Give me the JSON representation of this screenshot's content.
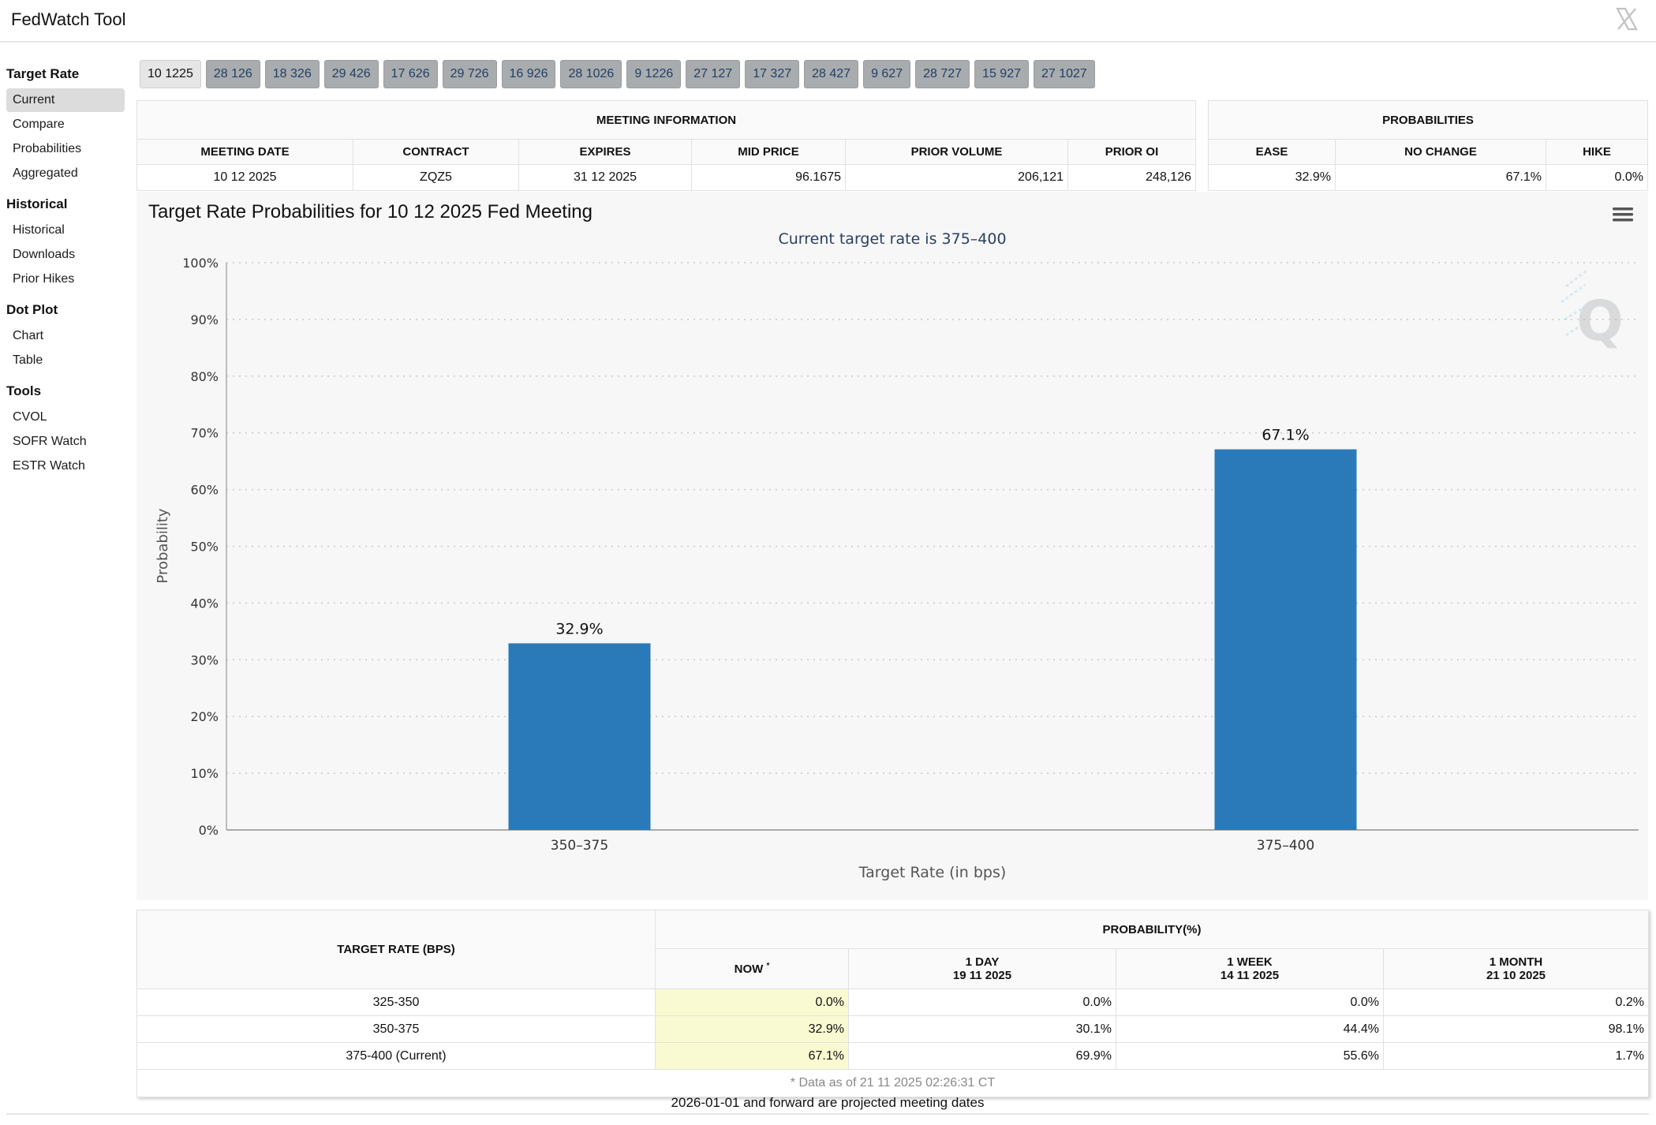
{
  "app": {
    "title": "FedWatch Tool"
  },
  "sidebar": {
    "sections": [
      {
        "heading": "Target Rate",
        "items": [
          "Current",
          "Compare",
          "Probabilities",
          "Aggregated"
        ]
      },
      {
        "heading": "Historical",
        "items": [
          "Historical",
          "Downloads",
          "Prior Hikes"
        ]
      },
      {
        "heading": "Dot Plot",
        "items": [
          "Chart",
          "Table"
        ]
      },
      {
        "heading": "Tools",
        "items": [
          "CVOL",
          "SOFR Watch",
          "ESTR Watch"
        ]
      }
    ],
    "active_item": "Current"
  },
  "tabs": [
    "10 1225",
    "28 126",
    "18 326",
    "29 426",
    "17 626",
    "29 726",
    "16 926",
    "28 1026",
    "9 1226",
    "27 127",
    "17 327",
    "28 427",
    "9 627",
    "28 727",
    "15 927",
    "27 1027"
  ],
  "meeting_info": {
    "caption": "MEETING INFORMATION",
    "headers": [
      "MEETING DATE",
      "CONTRACT",
      "EXPIRES",
      "MID PRICE",
      "PRIOR VOLUME",
      "PRIOR OI"
    ],
    "row": [
      "10 12 2025",
      "ZQZ5",
      "31 12 2025",
      "96.1675",
      "206,121",
      "248,126"
    ]
  },
  "probabilities": {
    "caption": "PROBABILITIES",
    "headers": [
      "EASE",
      "NO CHANGE",
      "HIKE"
    ],
    "row": [
      "32.9%",
      "67.1%",
      "0.0%"
    ]
  },
  "chart_data": {
    "type": "bar",
    "title": "Target Rate Probabilities for 10 12 2025 Fed Meeting",
    "subtitle": "Current target rate is 375–400",
    "xlabel": "Target Rate (in bps)",
    "ylabel": "Probability",
    "categories": [
      "350–375",
      "375–400"
    ],
    "values": [
      32.9,
      67.1
    ],
    "data_labels": [
      "32.9%",
      "67.1%"
    ],
    "ylim": [
      0,
      100
    ],
    "yticks": [
      "0%",
      "10%",
      "20%",
      "30%",
      "40%",
      "50%",
      "60%",
      "70%",
      "80%",
      "90%",
      "100%"
    ],
    "grid": true,
    "bar_color": "#2a7ab9"
  },
  "rate_table": {
    "header_rate": "TARGET RATE (BPS)",
    "header_prob": "PROBABILITY(%)",
    "columns": [
      {
        "label": "NOW",
        "sup": "*",
        "date": ""
      },
      {
        "label": "1 DAY",
        "date": "19 11 2025"
      },
      {
        "label": "1 WEEK",
        "date": "14 11 2025"
      },
      {
        "label": "1 MONTH",
        "date": "21 10 2025"
      }
    ],
    "rows": [
      {
        "rate": "325-350",
        "values": [
          "0.0%",
          "0.0%",
          "0.0%",
          "0.2%"
        ]
      },
      {
        "rate": "350-375",
        "values": [
          "32.9%",
          "30.1%",
          "44.4%",
          "98.1%"
        ]
      },
      {
        "rate": "375-400 (Current)",
        "values": [
          "67.1%",
          "69.9%",
          "55.6%",
          "1.7%"
        ]
      }
    ],
    "footnote": "* Data as of 21 11 2025 02:26:31 CT"
  },
  "bottom_note": "2026-01-01 and forward are projected meeting dates",
  "colors": {
    "accent": "#2a7ab9",
    "now_highlight": "#fafad2",
    "tab_bg": "#a9acae"
  }
}
